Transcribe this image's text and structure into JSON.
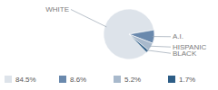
{
  "chart_data": {
    "type": "pie",
    "categories": [
      "WHITE",
      "A.I.",
      "HISPANIC",
      "BLACK"
    ],
    "values": [
      84.5,
      8.6,
      5.2,
      1.7
    ],
    "value_labels": [
      "84.5%",
      "8.6%",
      "5.2%",
      "1.7%"
    ],
    "colors": [
      "#dde3ea",
      "#6a89ad",
      "#a8b9cc",
      "#2d5d86"
    ],
    "legend": "bottom"
  }
}
